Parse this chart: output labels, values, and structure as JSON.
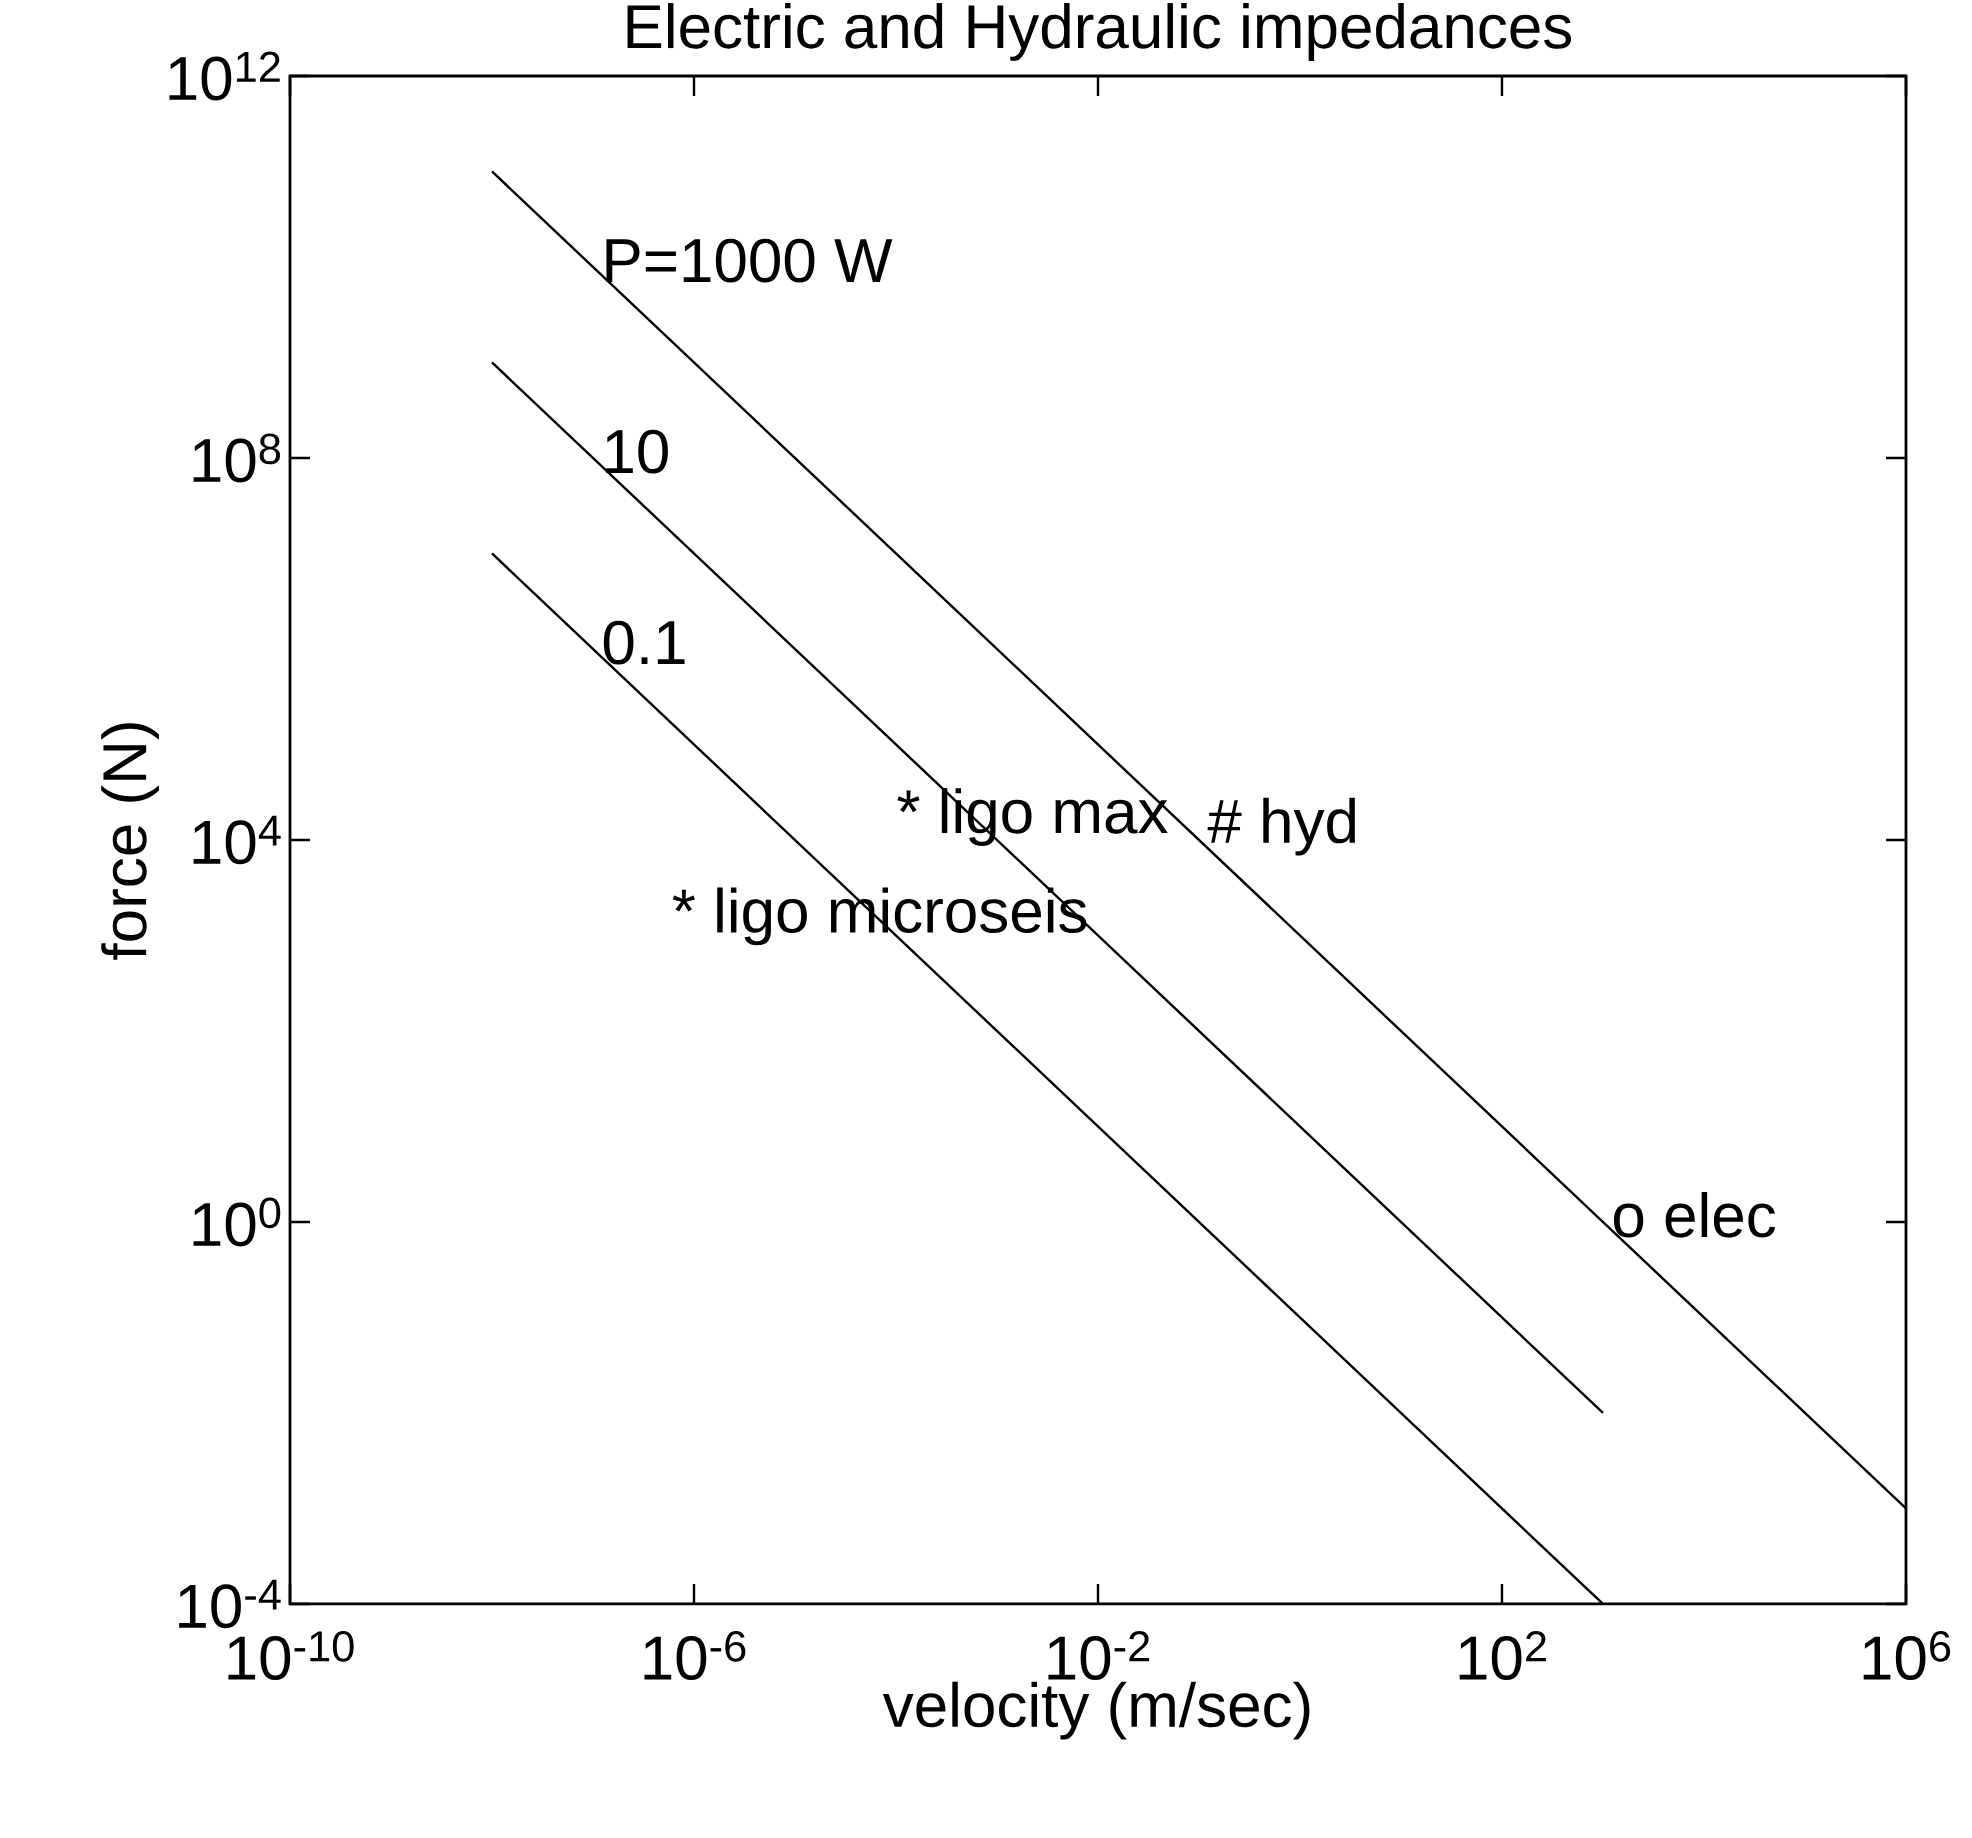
{
  "chart_data": {
    "type": "line",
    "title": "Electric and Hydraulic impedances",
    "xlabel": "velocity (m/sec)",
    "ylabel": "force (N)",
    "log": "xy",
    "grid": false,
    "xlim": [
      1e-10,
      1000000.0
    ],
    "ylim": [
      0.0001,
      1000000000000.0
    ],
    "xticks": [
      {
        "value": 1e-10,
        "label": "10$^{-10}$"
      },
      {
        "value": 1e-06,
        "label": "10$^{-6}$"
      },
      {
        "value": 0.01,
        "label": "10$^{-2}$"
      },
      {
        "value": 100.0,
        "label": "10$^{2}$"
      },
      {
        "value": 1000000.0,
        "label": "10$^{6}$"
      }
    ],
    "yticks": [
      {
        "value": 0.0001,
        "label": "10$^{-4}$"
      },
      {
        "value": 1,
        "label": "10$^{0}$"
      },
      {
        "value": 10000.0,
        "label": "10$^{4}$"
      },
      {
        "value": 100000000.0,
        "label": "10$^{8}$"
      },
      {
        "value": 1000000000000.0,
        "label": "10$^{12}$"
      }
    ],
    "series": [
      {
        "color": "#000000",
        "x": [
          1e-08,
          1000000.0
        ],
        "values": [
          100000000000.0,
          0.001
        ]
      },
      {
        "color": "#000000",
        "x": [
          1e-08,
          1000.0
        ],
        "values": [
          1000000000.0,
          0.01
        ]
      },
      {
        "color": "#000000",
        "x": [
          1e-08,
          1000.0
        ],
        "values": [
          10000000.0,
          0.0001
        ]
      }
    ],
    "annotations": [
      {
        "text": "P=1000 W",
        "x": 1e-07,
        "y": 10000000000.0
      },
      {
        "text": "10",
        "x": 1e-07,
        "y": 100000000.0
      },
      {
        "text": "0.1",
        "x": 1e-07,
        "y": 1000000.0
      },
      "* ligo max",
      "* ligo microseis",
      {
        "text": "# hyd",
        "x": 0.1,
        "y": 10000.0
      },
      {
        "text": "o elec",
        "x": 1000,
        "y": 1
      }
    ]
  }
}
